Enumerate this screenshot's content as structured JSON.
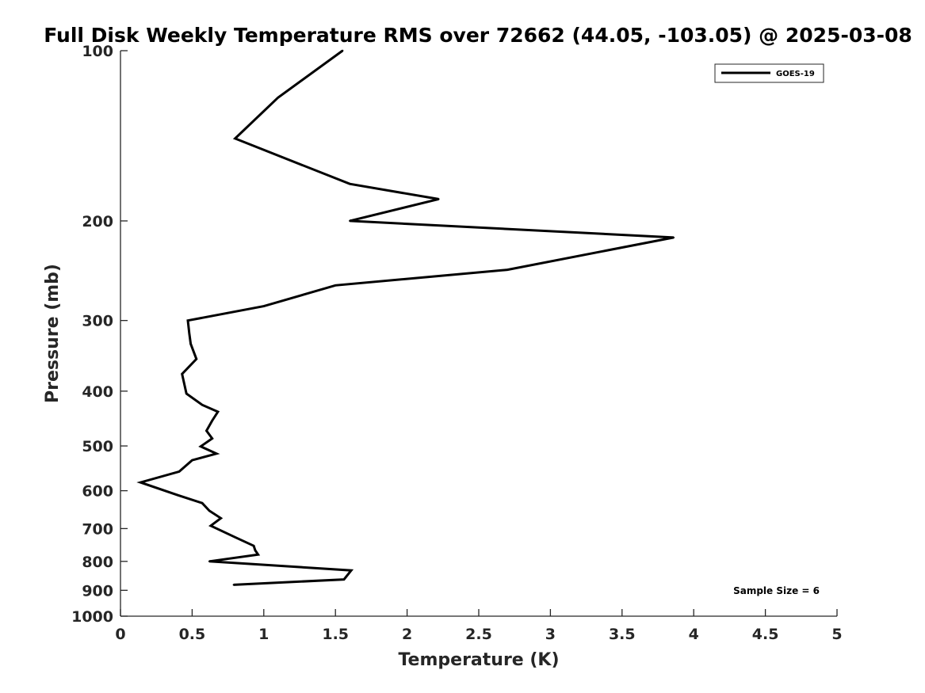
{
  "chart_data": {
    "type": "line",
    "title": "Full Disk Weekly Temperature RMS over 72662 (44.05, -103.05) @ 2025-03-08",
    "xlabel": "Temperature (K)",
    "ylabel": "Pressure (mb)",
    "xlim": [
      0,
      5
    ],
    "ylim": [
      100,
      1000
    ],
    "yscale": "log",
    "y_reversed": true,
    "grid": false,
    "xticks": [
      0,
      0.5,
      1,
      1.5,
      2,
      2.5,
      3,
      3.5,
      4,
      4.5,
      5
    ],
    "xtick_labels": [
      "0",
      "0.5",
      "1",
      "1.5",
      "2",
      "2.5",
      "3",
      "3.5",
      "4",
      "4.5",
      "5"
    ],
    "yticks": [
      100,
      200,
      300,
      400,
      500,
      600,
      700,
      800,
      900,
      1000
    ],
    "ytick_labels": [
      "100",
      "200",
      "300",
      "400",
      "500",
      "600",
      "700",
      "800",
      "900",
      "1000"
    ],
    "legend_position": "top-right",
    "series": [
      {
        "name": "GOES-19",
        "color": "#000000",
        "x": [
          1.55,
          1.1,
          0.8,
          1.6,
          2.22,
          1.6,
          3.86,
          2.7,
          1.5,
          1.0,
          0.47,
          0.48,
          0.49,
          0.53,
          0.43,
          0.46,
          0.57,
          0.68,
          0.64,
          0.6,
          0.64,
          0.56,
          0.67,
          0.5,
          0.41,
          0.14,
          0.4,
          0.57,
          0.62,
          0.7,
          0.63,
          0.8,
          0.93,
          0.94,
          0.96,
          0.62,
          1.61,
          1.56,
          0.79
        ],
        "y": [
          100,
          121,
          143,
          172,
          183,
          200,
          214,
          244,
          260,
          283,
          300,
          316,
          330,
          351,
          373,
          404,
          423,
          435,
          451,
          470,
          485,
          501,
          516,
          530,
          555,
          580,
          611,
          631,
          651,
          671,
          692,
          725,
          751,
          765,
          778,
          800,
          830,
          861,
          880
        ]
      }
    ],
    "annotations": [
      {
        "text": "Sample Size = 6",
        "position": "bottom-right"
      }
    ]
  }
}
